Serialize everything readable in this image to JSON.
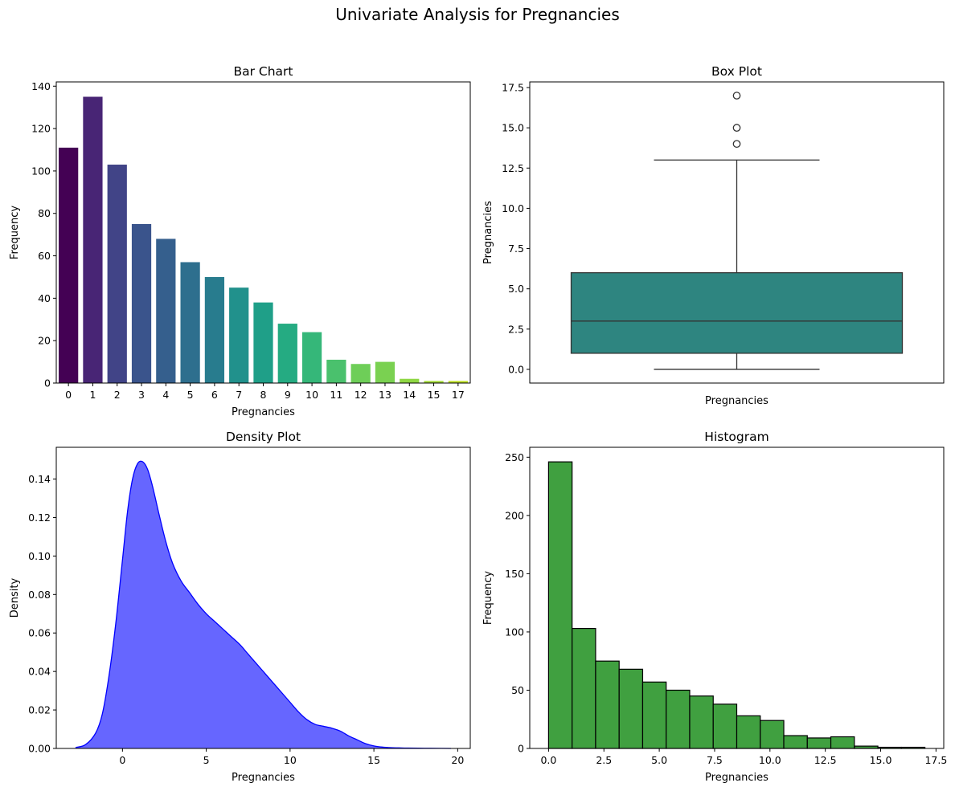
{
  "figure": {
    "suptitle": "Univariate Analysis for Pregnancies"
  },
  "chart_data": [
    {
      "type": "bar",
      "title": "Bar Chart",
      "xlabel": "Pregnancies",
      "ylabel": "Frequency",
      "categories": [
        "0",
        "1",
        "2",
        "3",
        "4",
        "5",
        "6",
        "7",
        "8",
        "9",
        "10",
        "11",
        "12",
        "13",
        "14",
        "15",
        "17"
      ],
      "values": [
        111,
        135,
        103,
        75,
        68,
        57,
        50,
        45,
        38,
        28,
        24,
        11,
        9,
        10,
        2,
        1,
        1
      ],
      "colors": [
        "#440154",
        "#482575",
        "#414487",
        "#3a548c",
        "#355f8d",
        "#2e6f8e",
        "#287c8e",
        "#21918c",
        "#1f9f88",
        "#25ab82",
        "#35b779",
        "#4ac16d",
        "#6ece58",
        "#7ad151",
        "#8fd744",
        "#a2da37",
        "#bddf26"
      ],
      "ylim": [
        0,
        142
      ],
      "yticks": [
        0,
        20,
        40,
        60,
        80,
        100,
        120,
        140
      ],
      "grid": false
    },
    {
      "type": "box",
      "title": "Box Plot",
      "xlabel": "Pregnancies",
      "ylabel": "Pregnancies",
      "box": {
        "whisker_low": 0,
        "q1": 1,
        "median": 3,
        "q3": 6,
        "whisker_high": 13
      },
      "outliers": [
        14,
        15,
        17
      ],
      "color": "#2e8580",
      "ylim": [
        -0.85,
        17.85
      ],
      "yticks": [
        0.0,
        2.5,
        5.0,
        7.5,
        10.0,
        12.5,
        15.0,
        17.5
      ],
      "ytick_labels": [
        "0.0",
        "2.5",
        "5.0",
        "7.5",
        "10.0",
        "12.5",
        "15.0",
        "17.5"
      ],
      "grid": false
    },
    {
      "type": "area",
      "title": "Density Plot",
      "xlabel": "Pregnancies",
      "ylabel": "Density",
      "x": [
        -2.8,
        -2.2,
        -1.6,
        -1.2,
        -0.8,
        -0.4,
        0,
        0.3,
        0.6,
        0.9,
        1.2,
        1.5,
        1.8,
        2.2,
        2.6,
        3,
        3.5,
        4,
        4.5,
        5,
        5.5,
        6,
        6.5,
        7,
        7.5,
        8,
        8.5,
        9,
        9.5,
        10,
        10.5,
        11,
        11.5,
        12,
        12.5,
        13,
        13.5,
        14,
        14.5,
        15,
        15.5,
        16,
        16.5,
        17,
        18,
        19,
        19.6
      ],
      "y": [
        0.0005,
        0.002,
        0.008,
        0.018,
        0.038,
        0.065,
        0.098,
        0.123,
        0.14,
        0.148,
        0.149,
        0.145,
        0.136,
        0.121,
        0.107,
        0.096,
        0.087,
        0.081,
        0.075,
        0.07,
        0.066,
        0.062,
        0.058,
        0.054,
        0.049,
        0.044,
        0.039,
        0.034,
        0.029,
        0.024,
        0.019,
        0.015,
        0.0125,
        0.0115,
        0.0105,
        0.009,
        0.0065,
        0.0045,
        0.0025,
        0.0013,
        0.0007,
        0.0004,
        0.0003,
        0.0002,
        0.0001,
        5e-05,
        0
      ],
      "fill": "#6666ff",
      "stroke": "#0000ff",
      "xlim": [
        -3.95,
        20.75
      ],
      "ylim": [
        0,
        0.1565
      ],
      "xticks": [
        0,
        5,
        10,
        15,
        20
      ],
      "yticks": [
        0.0,
        0.02,
        0.04,
        0.06,
        0.08,
        0.1,
        0.12,
        0.14
      ],
      "ytick_labels": [
        "0.00",
        "0.02",
        "0.04",
        "0.06",
        "0.08",
        "0.10",
        "0.12",
        "0.14"
      ],
      "grid": false
    },
    {
      "type": "histogram",
      "title": "Histogram",
      "xlabel": "Pregnancies",
      "ylabel": "Frequency",
      "bin_start": 0,
      "bin_width": 1.0625,
      "values": [
        246,
        103,
        75,
        68,
        57,
        50,
        45,
        38,
        28,
        24,
        11,
        9,
        10,
        2,
        1,
        1
      ],
      "fill": "#40a040",
      "stroke": "#000000",
      "xlim": [
        -0.85,
        17.85
      ],
      "ylim": [
        0,
        258.5
      ],
      "xticks": [
        0.0,
        2.5,
        5.0,
        7.5,
        10.0,
        12.5,
        15.0,
        17.5
      ],
      "xtick_labels": [
        "0.0",
        "2.5",
        "5.0",
        "7.5",
        "10.0",
        "12.5",
        "15.0",
        "17.5"
      ],
      "yticks": [
        0,
        50,
        100,
        150,
        200,
        250
      ],
      "grid": false
    }
  ]
}
